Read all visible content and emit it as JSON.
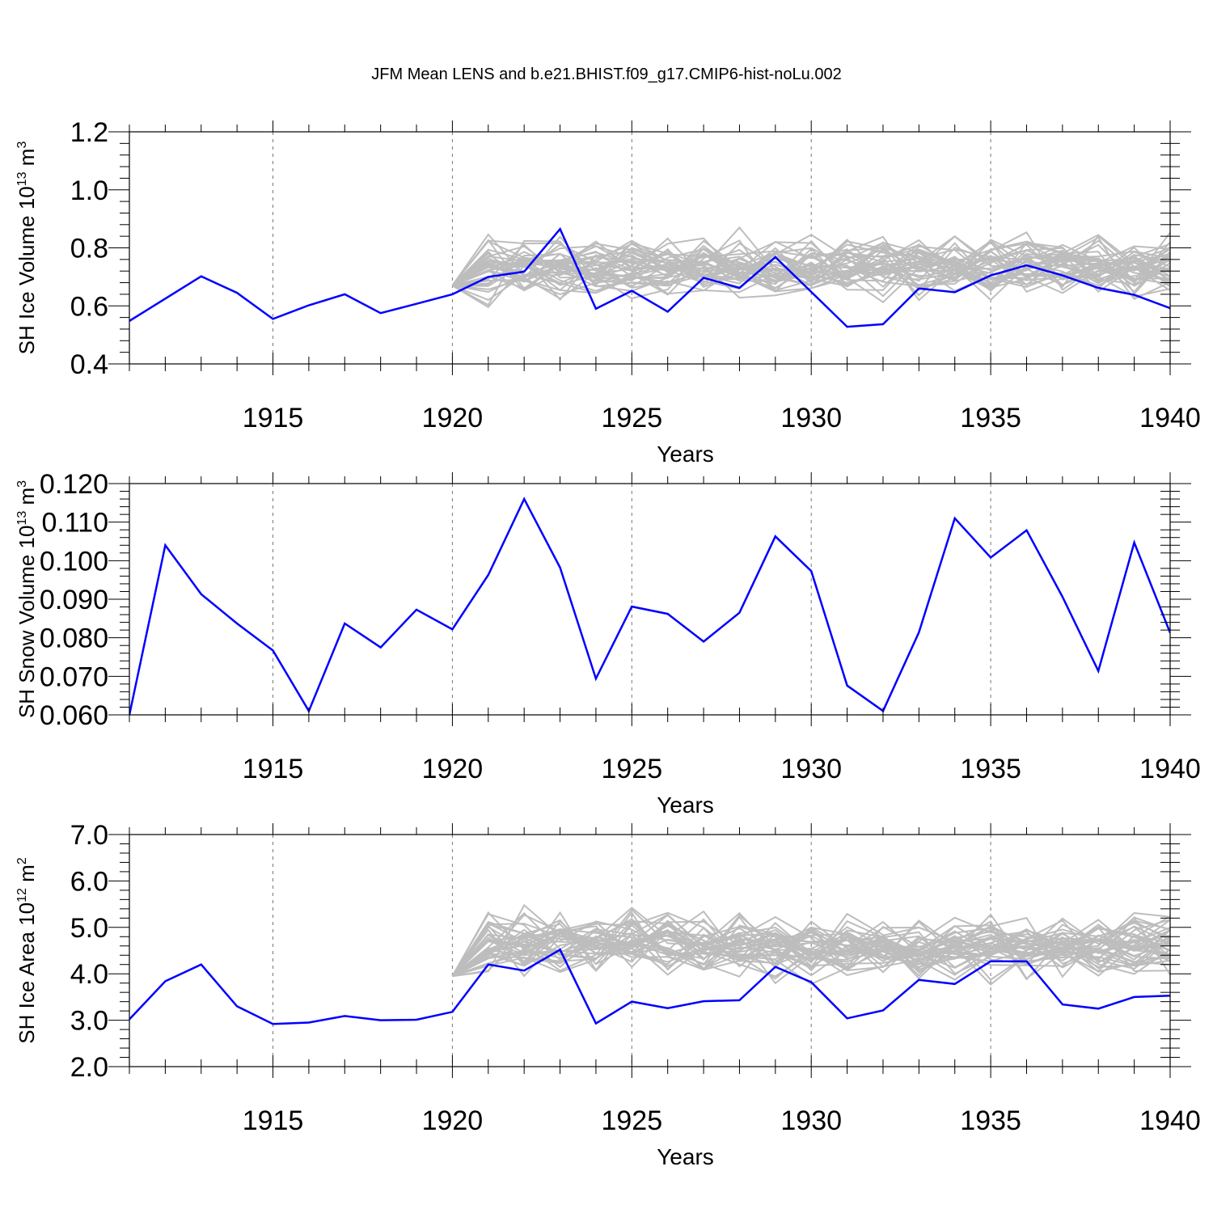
{
  "title": "JFM Mean LENS and b.e21.BHIST.f09_g17.CMIP6-hist-noLu.002",
  "chart_data": [
    {
      "type": "line",
      "name": "ice-volume",
      "ylabel": "SH Ice Volume 10",
      "ylabel_sup": "13",
      "ylabel_unit": " m",
      "ylabel_unit_sup": "3",
      "xlabel": "Years",
      "xlim": [
        1911,
        1940
      ],
      "ylim": [
        0.4,
        1.2
      ],
      "ytick_labels": [
        "0.4",
        "0.6",
        "0.8",
        "1.0",
        "1.2"
      ],
      "xtick_labels": [
        "1915",
        "1920",
        "1925",
        "1930",
        "1935",
        "1940"
      ],
      "ensemble": {
        "name": "LENS members",
        "color": "#bdbdbd",
        "start_year": 1920,
        "start_value": 0.67,
        "count": 40,
        "mean": 0.73,
        "spread": 0.07,
        "seed": 11
      },
      "series": [
        {
          "name": "b.e21.BHIST.f09_g17.CMIP6-hist-noLu.002",
          "color": "#0000ff",
          "x": [
            1911,
            1912,
            1913,
            1914,
            1915,
            1916,
            1917,
            1918,
            1919,
            1920,
            1921,
            1922,
            1923,
            1924,
            1925,
            1926,
            1927,
            1928,
            1929,
            1930,
            1931,
            1932,
            1933,
            1934,
            1935,
            1936,
            1937,
            1938,
            1939,
            1940
          ],
          "values": [
            0.548,
            0.625,
            0.702,
            0.645,
            0.555,
            0.602,
            0.64,
            0.575,
            0.607,
            0.64,
            0.7,
            0.718,
            0.865,
            0.59,
            0.652,
            0.58,
            0.697,
            0.662,
            0.768,
            0.648,
            0.528,
            0.537,
            0.66,
            0.647,
            0.705,
            0.74,
            0.705,
            0.662,
            0.638,
            0.592
          ]
        }
      ]
    },
    {
      "type": "line",
      "name": "snow-volume",
      "ylabel": "SH Snow Volume 10",
      "ylabel_sup": "13",
      "ylabel_unit": " m",
      "ylabel_unit_sup": "3",
      "xlabel": "Years",
      "xlim": [
        1911,
        1940
      ],
      "ylim": [
        0.06,
        0.12
      ],
      "ytick_labels": [
        "0.060",
        "0.070",
        "0.080",
        "0.090",
        "0.100",
        "0.110",
        "0.120"
      ],
      "xtick_labels": [
        "1915",
        "1920",
        "1925",
        "1930",
        "1935",
        "1940"
      ],
      "series": [
        {
          "name": "b.e21.BHIST.f09_g17.CMIP6-hist-noLu.002",
          "color": "#0000ff",
          "x": [
            1911,
            1912,
            1913,
            1914,
            1915,
            1916,
            1917,
            1918,
            1919,
            1920,
            1921,
            1922,
            1923,
            1924,
            1925,
            1926,
            1927,
            1928,
            1929,
            1930,
            1931,
            1932,
            1933,
            1934,
            1935,
            1936,
            1937,
            1938,
            1939,
            1940
          ],
          "values": [
            0.06,
            0.104,
            0.0913,
            0.0837,
            0.0767,
            0.061,
            0.0837,
            0.0775,
            0.0873,
            0.0822,
            0.0963,
            0.116,
            0.0982,
            0.0694,
            0.0881,
            0.0862,
            0.079,
            0.0865,
            0.1063,
            0.0973,
            0.0676,
            0.061,
            0.0814,
            0.111,
            0.1008,
            0.1079,
            0.0906,
            0.0714,
            0.1047,
            0.0813
          ]
        }
      ]
    },
    {
      "type": "line",
      "name": "ice-area",
      "ylabel": "SH Ice Area 10",
      "ylabel_sup": "12",
      "ylabel_unit": " m",
      "ylabel_unit_sup": "2",
      "xlabel": "Years",
      "xlim": [
        1911,
        1940
      ],
      "ylim": [
        2.0,
        7.0
      ],
      "ytick_labels": [
        "2.0",
        "3.0",
        "4.0",
        "5.0",
        "6.0",
        "7.0"
      ],
      "xtick_labels": [
        "1915",
        "1920",
        "1925",
        "1930",
        "1935",
        "1940"
      ],
      "ensemble": {
        "name": "LENS members",
        "color": "#bdbdbd",
        "start_year": 1920,
        "start_value": 3.95,
        "count": 40,
        "mean": 4.6,
        "spread": 0.45,
        "seed": 23
      },
      "series": [
        {
          "name": "b.e21.BHIST.f09_g17.CMIP6-hist-noLu.002",
          "color": "#0000ff",
          "x": [
            1911,
            1912,
            1913,
            1914,
            1915,
            1916,
            1917,
            1918,
            1919,
            1920,
            1921,
            1922,
            1923,
            1924,
            1925,
            1926,
            1927,
            1928,
            1929,
            1930,
            1931,
            1932,
            1933,
            1934,
            1935,
            1936,
            1937,
            1938,
            1939,
            1940
          ],
          "values": [
            3.02,
            3.84,
            4.2,
            3.3,
            2.92,
            2.95,
            3.09,
            3.0,
            3.01,
            3.18,
            4.2,
            4.07,
            4.52,
            2.93,
            3.4,
            3.26,
            3.41,
            3.43,
            4.15,
            3.82,
            3.04,
            3.21,
            3.87,
            3.78,
            4.27,
            4.27,
            3.34,
            3.25,
            3.5,
            3.53
          ]
        }
      ]
    }
  ]
}
